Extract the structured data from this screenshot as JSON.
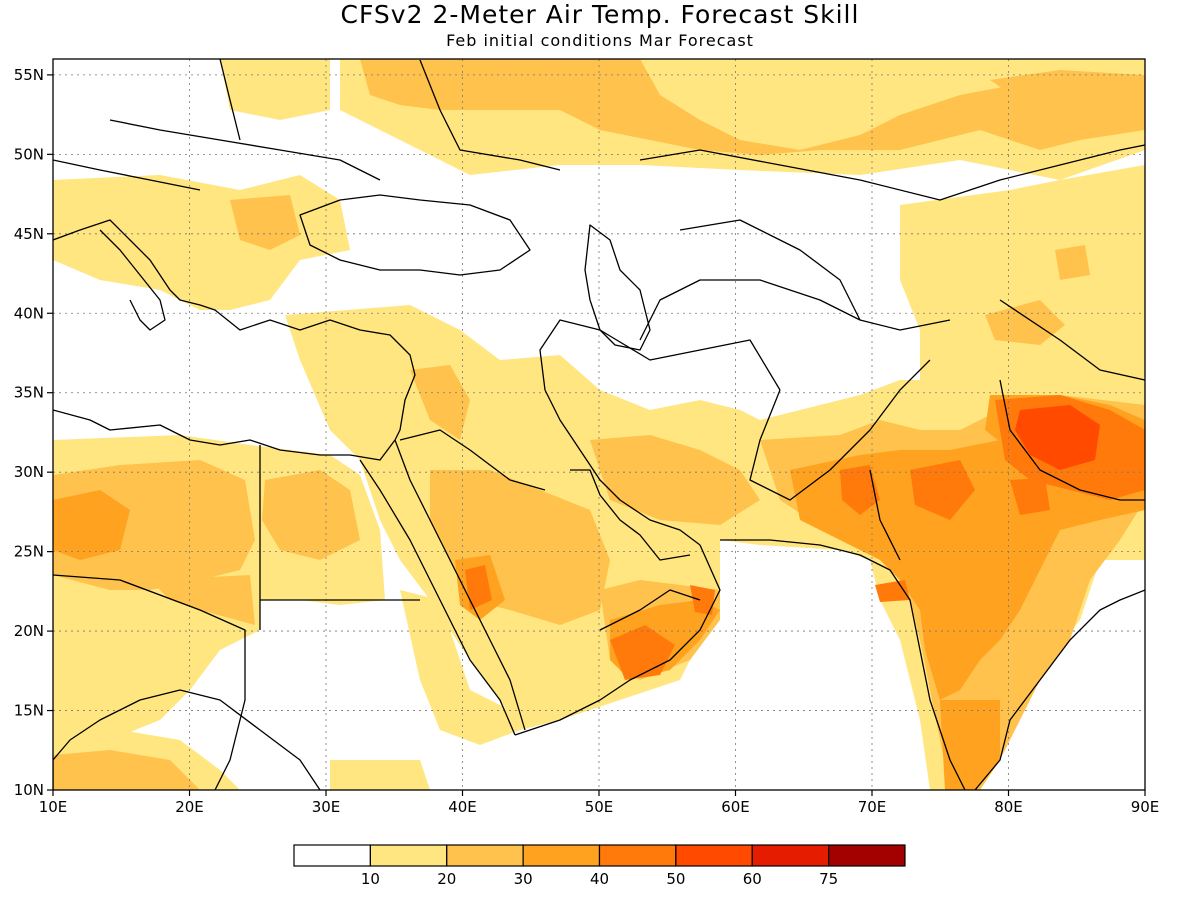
{
  "title": "CFSv2 2-Meter Air Temp. Forecast Skill",
  "subtitle": "Feb initial conditions  Mar Forecast",
  "map": {
    "lon_range": [
      10,
      90
    ],
    "lat_range": [
      10,
      56
    ],
    "lon_ticks": [
      {
        "value": 10,
        "label": "10E"
      },
      {
        "value": 20,
        "label": "20E"
      },
      {
        "value": 30,
        "label": "30E"
      },
      {
        "value": 40,
        "label": "40E"
      },
      {
        "value": 50,
        "label": "50E"
      },
      {
        "value": 60,
        "label": "60E"
      },
      {
        "value": 70,
        "label": "70E"
      },
      {
        "value": 80,
        "label": "80E"
      },
      {
        "value": 90,
        "label": "90E"
      }
    ],
    "lat_ticks": [
      {
        "value": 10,
        "label": "10N"
      },
      {
        "value": 15,
        "label": "15N"
      },
      {
        "value": 20,
        "label": "20N"
      },
      {
        "value": 25,
        "label": "25N"
      },
      {
        "value": 30,
        "label": "30N"
      },
      {
        "value": 35,
        "label": "35N"
      },
      {
        "value": 40,
        "label": "40N"
      },
      {
        "value": 45,
        "label": "45N"
      },
      {
        "value": 50,
        "label": "50N"
      },
      {
        "value": 55,
        "label": "55N"
      }
    ],
    "grid": true
  },
  "colorbar": {
    "colors": [
      "#ffffff",
      "#ffe680",
      "#ffc24d",
      "#ffa21f",
      "#ff7a0a",
      "#ff4a00",
      "#e61c00",
      "#a30000"
    ],
    "labels": [
      "10",
      "20",
      "30",
      "40",
      "50",
      "60",
      "75"
    ]
  }
}
